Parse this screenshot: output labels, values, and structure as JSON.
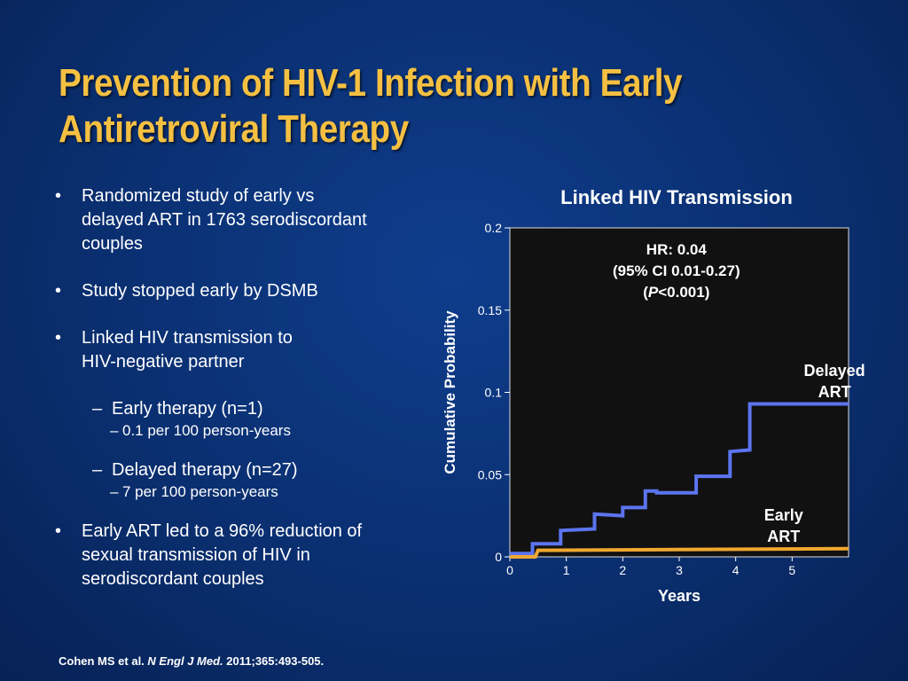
{
  "slide": {
    "title_line1": "Prevention of HIV-1 Infection with Early",
    "title_line2": "Antiretroviral Therapy"
  },
  "bullets": {
    "b1": [
      "Randomized study of early vs",
      "delayed ART in 1763 serodiscordant",
      "couples"
    ],
    "b2": "Study stopped early by DSMB",
    "b3": [
      "Linked HIV transmission to",
      "HIV-negative partner"
    ],
    "early": "Early therapy (n=1)",
    "early_rate": "0.1 per 100 person-years",
    "delayed": "Delayed therapy (n=27)",
    "delayed_rate": "7 per 100 person-years",
    "b4": [
      "Early ART led to a 96% reduction of",
      "sexual transmission of HIV in",
      "serodiscordant couples"
    ],
    "bullet_glyph": "•",
    "dash_glyph": "–"
  },
  "citation": {
    "authors": "Cohen MS et al.",
    "journal": "N Engl J Med.",
    "ref": "2011;365:493-505."
  },
  "chart_data": {
    "type": "line",
    "title": "Linked HIV Transmission",
    "xlabel": "Years",
    "ylabel": "Cumulative Probability",
    "xlim": [
      0,
      6
    ],
    "ylim": [
      0,
      0.2
    ],
    "xticks": [
      "0",
      "1",
      "2",
      "3",
      "4",
      "5"
    ],
    "yticks": [
      "0",
      "0.05",
      "0.1",
      "0.15",
      "0.2"
    ],
    "annotation": {
      "hr": "HR: 0.04",
      "ci": "(95% CI 0.01-0.27)",
      "p_letter": "P",
      "p_rest": "<0.001)",
      "p_open": "("
    },
    "plot_background": "#111111",
    "series": [
      {
        "name": "Delayed ART",
        "label_lines": [
          "Delayed",
          "ART"
        ],
        "color": "#5b74f0",
        "x": [
          0,
          0.4,
          0.4,
          0.9,
          0.9,
          1.5,
          1.5,
          2.0,
          2.0,
          2.4,
          2.4,
          2.6,
          2.6,
          3.3,
          3.3,
          3.9,
          3.9,
          4.25,
          4.25,
          6.0
        ],
        "y": [
          0.002,
          0.002,
          0.008,
          0.008,
          0.016,
          0.017,
          0.026,
          0.025,
          0.03,
          0.03,
          0.04,
          0.04,
          0.039,
          0.039,
          0.049,
          0.049,
          0.064,
          0.065,
          0.093,
          0.093
        ]
      },
      {
        "name": "Early ART",
        "label_lines": [
          "Early",
          "ART"
        ],
        "color": "#f0a830",
        "x": [
          0,
          0.45,
          0.5,
          6.0
        ],
        "y": [
          0.0,
          0.0,
          0.004,
          0.005
        ]
      }
    ]
  }
}
